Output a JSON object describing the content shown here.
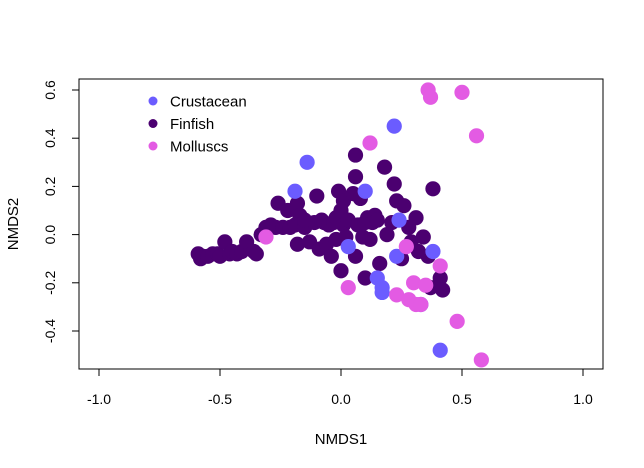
{
  "chart_data": {
    "type": "scatter",
    "title": "",
    "xlabel": "NMDS1",
    "ylabel": "NMDS2",
    "xlim": [
      -1.0,
      1.0
    ],
    "ylim": [
      -0.55,
      0.65
    ],
    "x_ticks": [
      -1.0,
      -0.5,
      0.0,
      0.5,
      1.0
    ],
    "x_tick_labels": [
      "-1.0",
      "-0.5",
      "0.0",
      "0.5",
      "1.0"
    ],
    "y_ticks": [
      -0.4,
      -0.2,
      0.0,
      0.2,
      0.4,
      0.6
    ],
    "y_tick_labels": [
      "-0.4",
      "-0.2",
      "0.0",
      "0.2",
      "0.4",
      "0.6"
    ],
    "grid": false,
    "legend_position": "top-left",
    "series": [
      {
        "name": "Crustacean",
        "color": "#6B5CFF",
        "points": [
          [
            -0.14,
            0.3
          ],
          [
            -0.19,
            0.18
          ],
          [
            0.22,
            0.45
          ],
          [
            0.24,
            0.06
          ],
          [
            0.23,
            -0.09
          ],
          [
            0.03,
            -0.05
          ],
          [
            0.15,
            -0.18
          ],
          [
            0.17,
            -0.22
          ],
          [
            0.17,
            -0.24
          ],
          [
            0.33,
            -0.29
          ],
          [
            0.38,
            -0.07
          ],
          [
            0.41,
            -0.48
          ],
          [
            0.1,
            0.18
          ]
        ]
      },
      {
        "name": "Finfish",
        "color": "#4B0070",
        "points": [
          [
            -0.59,
            -0.08
          ],
          [
            -0.58,
            -0.1
          ],
          [
            -0.57,
            -0.09
          ],
          [
            -0.55,
            -0.09
          ],
          [
            -0.53,
            -0.08
          ],
          [
            -0.51,
            -0.08
          ],
          [
            -0.5,
            -0.09
          ],
          [
            -0.48,
            -0.03
          ],
          [
            -0.46,
            -0.08
          ],
          [
            -0.45,
            -0.07
          ],
          [
            -0.43,
            -0.08
          ],
          [
            -0.41,
            -0.07
          ],
          [
            -0.39,
            -0.03
          ],
          [
            -0.36,
            -0.07
          ],
          [
            -0.35,
            -0.08
          ],
          [
            -0.33,
            0.0
          ],
          [
            -0.31,
            0.03
          ],
          [
            -0.29,
            0.04
          ],
          [
            -0.27,
            0.03
          ],
          [
            -0.26,
            0.13
          ],
          [
            -0.24,
            0.03
          ],
          [
            -0.22,
            0.1
          ],
          [
            -0.21,
            0.03
          ],
          [
            -0.19,
            0.04
          ],
          [
            -0.18,
            -0.04
          ],
          [
            -0.18,
            0.13
          ],
          [
            -0.17,
            0.08
          ],
          [
            -0.15,
            0.03
          ],
          [
            -0.13,
            -0.03
          ],
          [
            -0.11,
            0.05
          ],
          [
            -0.1,
            0.16
          ],
          [
            -0.09,
            -0.06
          ],
          [
            -0.08,
            0.06
          ],
          [
            -0.07,
            0.05
          ],
          [
            -0.06,
            -0.04
          ],
          [
            -0.05,
            0.04
          ],
          [
            -0.04,
            -0.09
          ],
          [
            -0.03,
            0.05
          ],
          [
            -0.02,
            0.07
          ],
          [
            -0.02,
            -0.02
          ],
          [
            -0.01,
            0.18
          ],
          [
            0.0,
            0.1
          ],
          [
            0.01,
            0.14
          ],
          [
            0.01,
            0.04
          ],
          [
            0.02,
            -0.01
          ],
          [
            0.03,
            0.06
          ],
          [
            0.05,
            0.17
          ],
          [
            0.06,
            0.24
          ],
          [
            0.06,
            0.33
          ],
          [
            0.07,
            0.04
          ],
          [
            0.08,
            0.15
          ],
          [
            0.09,
            -0.01
          ],
          [
            0.1,
            0.05
          ],
          [
            0.11,
            0.07
          ],
          [
            0.12,
            -0.02
          ],
          [
            0.13,
            0.05
          ],
          [
            0.14,
            0.08
          ],
          [
            0.15,
            0.06
          ],
          [
            0.16,
            -0.12
          ],
          [
            0.18,
            0.28
          ],
          [
            0.19,
            0.0
          ],
          [
            0.21,
            0.05
          ],
          [
            0.22,
            0.21
          ],
          [
            0.23,
            0.14
          ],
          [
            0.25,
            -0.1
          ],
          [
            0.26,
            0.12
          ],
          [
            0.28,
            0.03
          ],
          [
            0.29,
            -0.03
          ],
          [
            0.31,
            0.07
          ],
          [
            0.32,
            -0.07
          ],
          [
            0.34,
            -0.01
          ],
          [
            0.36,
            -0.09
          ],
          [
            0.37,
            -0.22
          ],
          [
            0.38,
            0.19
          ],
          [
            0.41,
            -0.18
          ],
          [
            0.42,
            -0.23
          ],
          [
            0.06,
            -0.09
          ],
          [
            -0.15,
            0.06
          ],
          [
            0.0,
            -0.15
          ],
          [
            0.1,
            -0.18
          ]
        ]
      },
      {
        "name": "Molluscs",
        "color": "#E35BE3",
        "points": [
          [
            0.36,
            0.6
          ],
          [
            0.37,
            0.57
          ],
          [
            0.5,
            0.59
          ],
          [
            0.56,
            0.41
          ],
          [
            0.12,
            0.38
          ],
          [
            -0.31,
            -0.01
          ],
          [
            0.27,
            -0.05
          ],
          [
            0.23,
            -0.25
          ],
          [
            0.28,
            -0.27
          ],
          [
            0.3,
            -0.2
          ],
          [
            0.31,
            -0.29
          ],
          [
            0.33,
            -0.29
          ],
          [
            0.35,
            -0.21
          ],
          [
            0.41,
            -0.13
          ],
          [
            0.48,
            -0.36
          ],
          [
            0.58,
            -0.52
          ],
          [
            0.03,
            -0.22
          ]
        ]
      }
    ]
  }
}
